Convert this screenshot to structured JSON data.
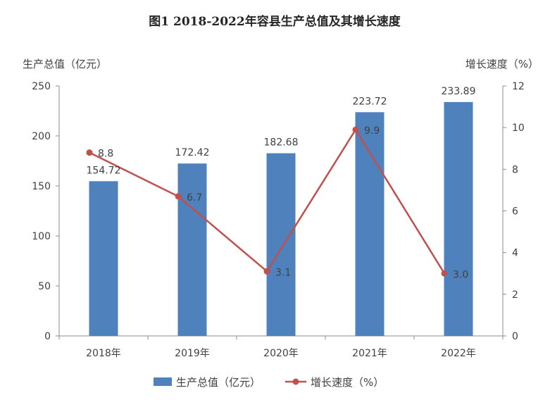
{
  "chart_data": {
    "type": "bar",
    "title": "图1   2018-2022年容县生产总值及其增长速度",
    "categories": [
      "2018年",
      "2019年",
      "2020年",
      "2021年",
      "2022年"
    ],
    "ylabel": "生产总值（亿元）",
    "y2label": "增长速度（%）",
    "ylim": [
      0,
      250
    ],
    "y2lim": [
      0,
      12
    ],
    "yticks": [
      "0",
      "50",
      "100",
      "150",
      "200",
      "250"
    ],
    "y2ticks": [
      "0",
      "2",
      "4",
      "6",
      "8",
      "10",
      "12"
    ],
    "grid": false,
    "legend_position": "bottom",
    "series": [
      {
        "name": "生产总值（亿元）",
        "type": "bar",
        "axis": "left",
        "color": "#4F81BD",
        "values": [
          154.72,
          172.42,
          182.68,
          223.72,
          233.89
        ],
        "labels": [
          "154.72",
          "172.42",
          "182.68",
          "223.72",
          "233.89"
        ]
      },
      {
        "name": "增长速度（%）",
        "type": "line",
        "axis": "right",
        "color": "#C0504D",
        "values": [
          8.8,
          6.7,
          3.1,
          9.9,
          3.0
        ],
        "labels": [
          "8.8",
          "6.7",
          "3.1",
          "9.9",
          "3.0"
        ]
      }
    ]
  }
}
